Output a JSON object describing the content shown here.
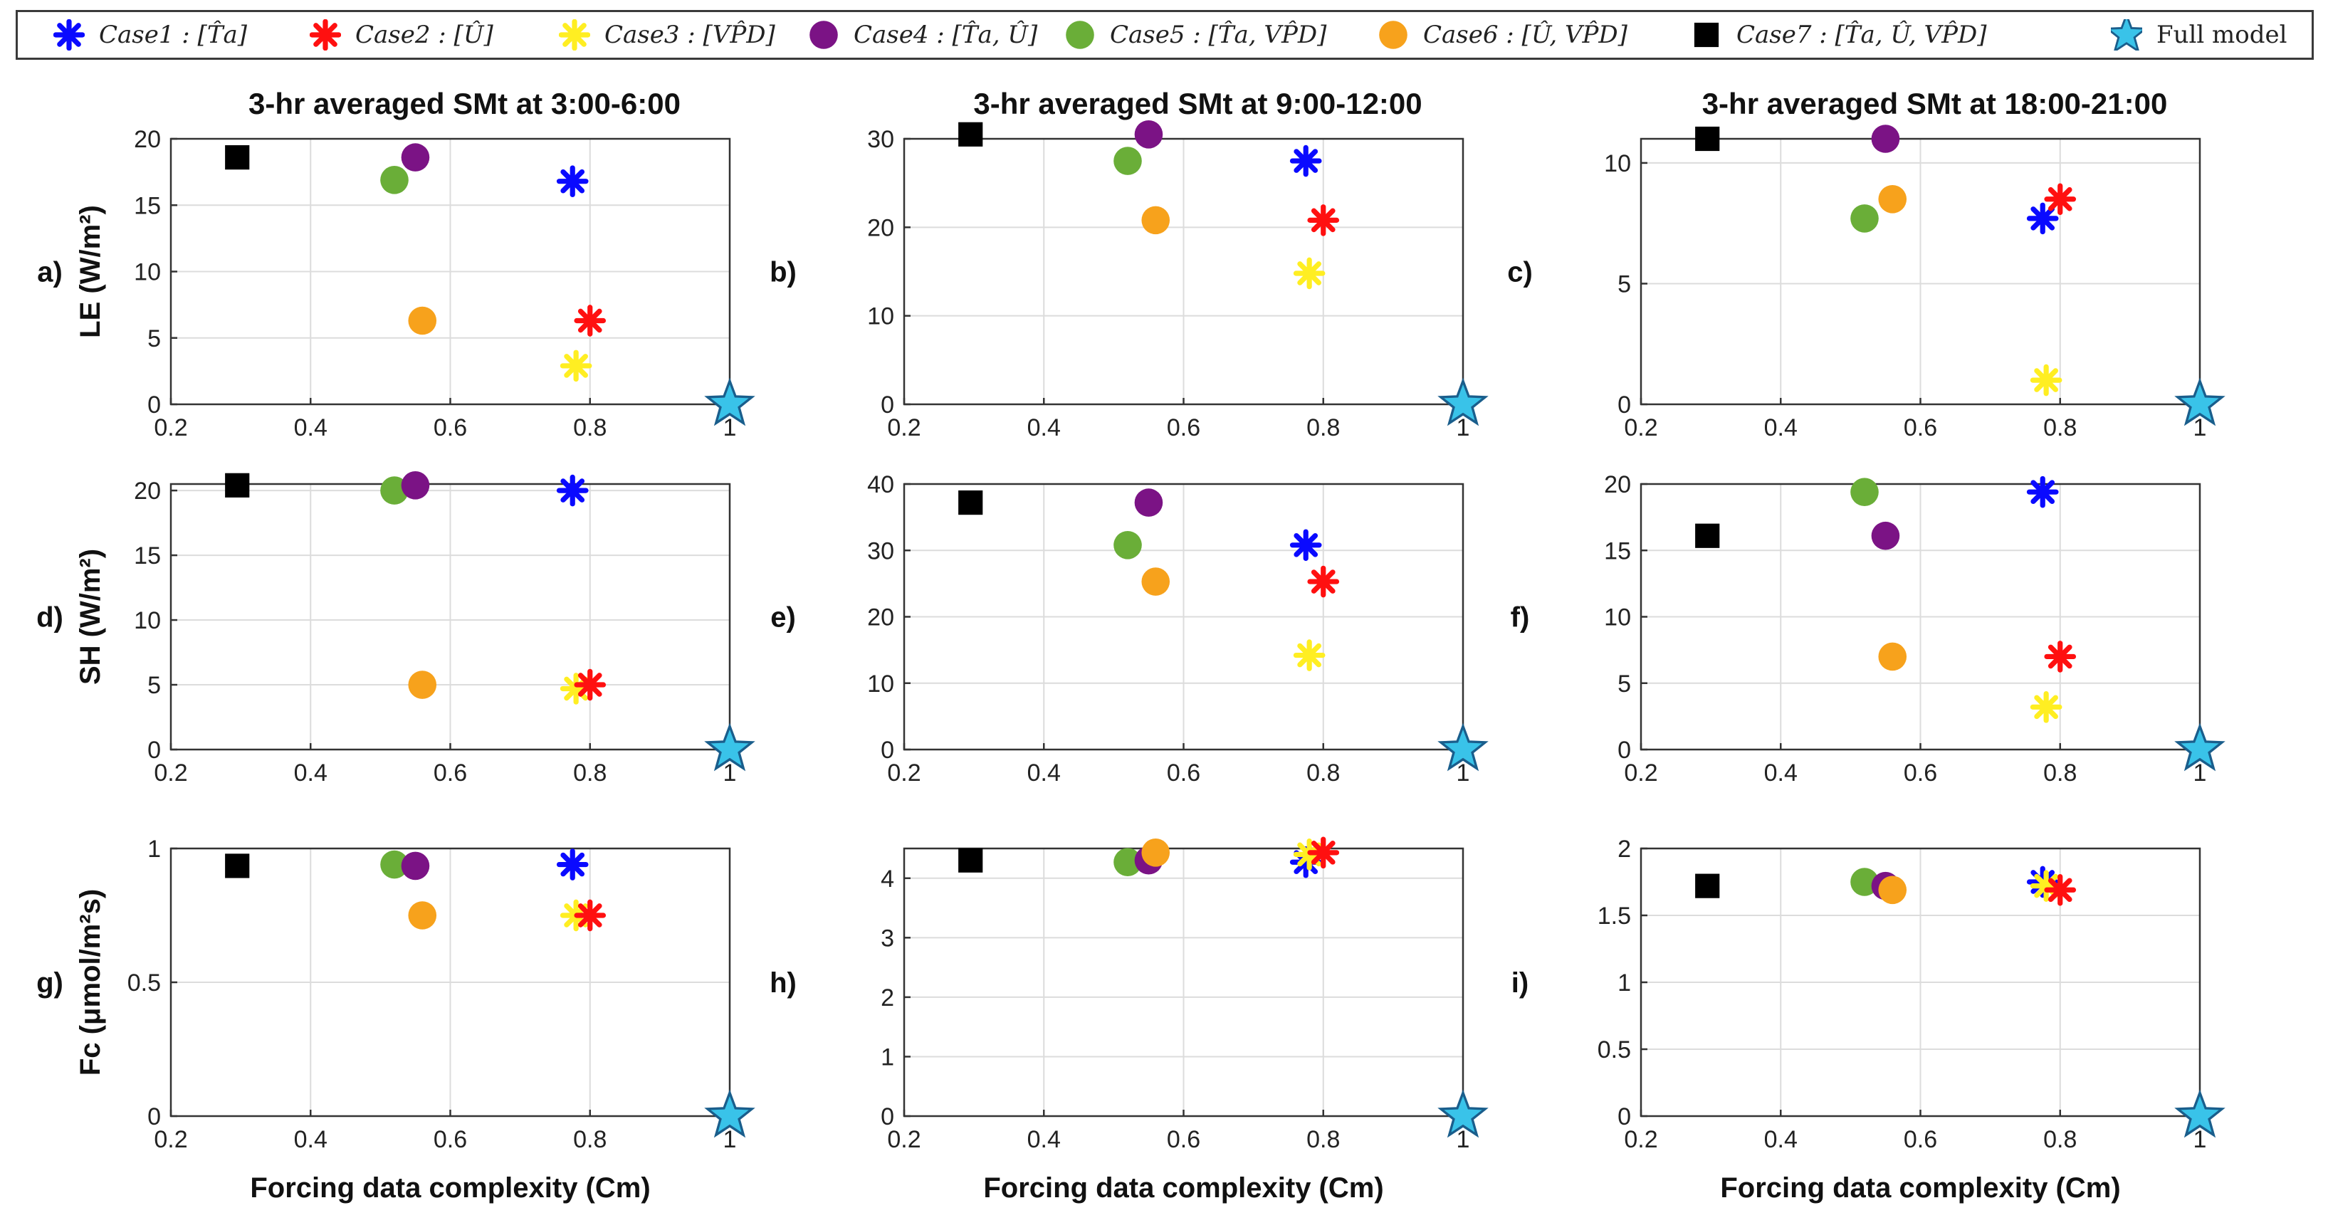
{
  "legend": [
    {
      "key": "case1",
      "label": "Case1 : [T̂a]",
      "marker": "asterisk",
      "color": "#0a0aff"
    },
    {
      "key": "case2",
      "label": "Case2 : [Û]",
      "marker": "asterisk",
      "color": "#ff1010"
    },
    {
      "key": "case3",
      "label": "Case3 : [VP̂D]",
      "marker": "asterisk",
      "color": "#ffee22"
    },
    {
      "key": "case4",
      "label": "Case4 : [T̂a, Û]",
      "marker": "circle",
      "color": "#7b1385"
    },
    {
      "key": "case5",
      "label": "Case5 : [T̂a, VP̂D]",
      "marker": "circle",
      "color": "#6aae38"
    },
    {
      "key": "case6",
      "label": "Case6 : [Û, VP̂D]",
      "marker": "circle",
      "color": "#f7a21c"
    },
    {
      "key": "case7",
      "label": "Case7 : [T̂a, Û, VP̂D]",
      "marker": "square",
      "color": "#000000"
    },
    {
      "key": "full",
      "label": "Full model",
      "marker": "star",
      "color": "#39c3e9"
    }
  ],
  "column_titles": [
    "3-hr averaged SMt at 3:00-6:00",
    "3-hr averaged SMt at 9:00-12:00",
    "3-hr averaged SMt at 18:00-21:00"
  ],
  "row_ylabels": [
    "LE (W/m²)",
    "SH (W/m²)",
    "Fc (μmol/m²s)"
  ],
  "xlabel": "Forcing data complexity (Cm)",
  "chart_data": [
    {
      "panel": "a)",
      "type": "scatter",
      "xlim": [
        0.2,
        1
      ],
      "ylim": [
        0,
        20
      ],
      "yticks": [
        "0",
        "5",
        "10",
        "15",
        "20"
      ],
      "xticks": [
        "0.2",
        "0.4",
        "0.6",
        "0.8",
        "1"
      ],
      "points": {
        "case1": [
          0.775,
          16.8
        ],
        "case2": [
          0.8,
          6.3
        ],
        "case3": [
          0.78,
          2.9
        ],
        "case4": [
          0.55,
          18.6
        ],
        "case5": [
          0.52,
          16.9
        ],
        "case6": [
          0.56,
          6.3
        ],
        "case7": [
          0.295,
          18.6
        ],
        "full": [
          1,
          0
        ]
      }
    },
    {
      "panel": "b)",
      "type": "scatter",
      "xlim": [
        0.2,
        1
      ],
      "ylim": [
        0,
        30
      ],
      "yticks": [
        "0",
        "10",
        "20",
        "30"
      ],
      "xticks": [
        "0.2",
        "0.4",
        "0.6",
        "0.8",
        "1"
      ],
      "points": {
        "case1": [
          0.775,
          27.5
        ],
        "case2": [
          0.8,
          20.8
        ],
        "case3": [
          0.78,
          14.8
        ],
        "case4": [
          0.55,
          30.5
        ],
        "case5": [
          0.52,
          27.5
        ],
        "case6": [
          0.56,
          20.8
        ],
        "case7": [
          0.295,
          30.5
        ],
        "full": [
          1,
          0
        ]
      }
    },
    {
      "panel": "c)",
      "type": "scatter",
      "xlim": [
        0.2,
        1
      ],
      "ylim": [
        0,
        11
      ],
      "yticks": [
        "0",
        "5",
        "10"
      ],
      "xticks": [
        "0.2",
        "0.4",
        "0.6",
        "0.8",
        "1"
      ],
      "points": {
        "case1": [
          0.775,
          7.7
        ],
        "case2": [
          0.8,
          8.5
        ],
        "case3": [
          0.78,
          1.0
        ],
        "case4": [
          0.55,
          11.0
        ],
        "case5": [
          0.52,
          7.7
        ],
        "case6": [
          0.56,
          8.5
        ],
        "case7": [
          0.295,
          11.0
        ],
        "full": [
          1,
          0
        ]
      }
    },
    {
      "panel": "d)",
      "type": "scatter",
      "xlim": [
        0.2,
        1
      ],
      "ylim": [
        0,
        20.5
      ],
      "yticks": [
        "0",
        "5",
        "10",
        "15",
        "20"
      ],
      "xticks": [
        "0.2",
        "0.4",
        "0.6",
        "0.8",
        "1"
      ],
      "points": {
        "case1": [
          0.775,
          20.0
        ],
        "case2": [
          0.8,
          5.0
        ],
        "case3": [
          0.78,
          4.7
        ],
        "case4": [
          0.55,
          20.4
        ],
        "case5": [
          0.52,
          20.0
        ],
        "case6": [
          0.56,
          5.0
        ],
        "case7": [
          0.295,
          20.4
        ],
        "full": [
          1,
          0
        ]
      }
    },
    {
      "panel": "e)",
      "type": "scatter",
      "xlim": [
        0.2,
        1
      ],
      "ylim": [
        0,
        40
      ],
      "yticks": [
        "0",
        "10",
        "20",
        "30",
        "40"
      ],
      "xticks": [
        "0.2",
        "0.4",
        "0.6",
        "0.8",
        "1"
      ],
      "points": {
        "case1": [
          0.775,
          30.8
        ],
        "case2": [
          0.8,
          25.3
        ],
        "case3": [
          0.78,
          14.2
        ],
        "case4": [
          0.55,
          37.2
        ],
        "case5": [
          0.52,
          30.8
        ],
        "case6": [
          0.56,
          25.3
        ],
        "case7": [
          0.295,
          37.2
        ],
        "full": [
          1,
          0
        ]
      }
    },
    {
      "panel": "f)",
      "type": "scatter",
      "xlim": [
        0.2,
        1
      ],
      "ylim": [
        0,
        20
      ],
      "yticks": [
        "0",
        "5",
        "10",
        "15",
        "20"
      ],
      "xticks": [
        "0.2",
        "0.4",
        "0.6",
        "0.8",
        "1"
      ],
      "points": {
        "case1": [
          0.775,
          19.4
        ],
        "case2": [
          0.8,
          7.0
        ],
        "case3": [
          0.78,
          3.2
        ],
        "case4": [
          0.55,
          16.1
        ],
        "case5": [
          0.52,
          19.4
        ],
        "case6": [
          0.56,
          7.0
        ],
        "case7": [
          0.295,
          16.1
        ],
        "full": [
          1,
          0
        ]
      }
    },
    {
      "panel": "g)",
      "type": "scatter",
      "xlim": [
        0.2,
        1
      ],
      "ylim": [
        0,
        1
      ],
      "yticks": [
        "0",
        "0.5",
        "1"
      ],
      "xticks": [
        "0.2",
        "0.4",
        "0.6",
        "0.8",
        "1"
      ],
      "points": {
        "case1": [
          0.775,
          0.94
        ],
        "case2": [
          0.8,
          0.75
        ],
        "case3": [
          0.78,
          0.75
        ],
        "case4": [
          0.55,
          0.935
        ],
        "case5": [
          0.52,
          0.94
        ],
        "case6": [
          0.56,
          0.75
        ],
        "case7": [
          0.295,
          0.935
        ],
        "full": [
          1,
          0
        ]
      }
    },
    {
      "panel": "h)",
      "type": "scatter",
      "xlim": [
        0.2,
        1
      ],
      "ylim": [
        0,
        4.5
      ],
      "yticks": [
        "0",
        "1",
        "2",
        "3",
        "4"
      ],
      "xticks": [
        "0.2",
        "0.4",
        "0.6",
        "0.8",
        "1"
      ],
      "points": {
        "case1": [
          0.775,
          4.27
        ],
        "case2": [
          0.8,
          4.43
        ],
        "case3": [
          0.78,
          4.4
        ],
        "case4": [
          0.55,
          4.3
        ],
        "case5": [
          0.52,
          4.27
        ],
        "case6": [
          0.56,
          4.43
        ],
        "case7": [
          0.295,
          4.3
        ],
        "full": [
          1,
          0
        ]
      }
    },
    {
      "panel": "i)",
      "type": "scatter",
      "xlim": [
        0.2,
        1
      ],
      "ylim": [
        0,
        2
      ],
      "yticks": [
        "0",
        "0.5",
        "1",
        "1.5",
        "2"
      ],
      "xticks": [
        "0.2",
        "0.4",
        "0.6",
        "0.8",
        "1"
      ],
      "points": {
        "case1": [
          0.775,
          1.75
        ],
        "case2": [
          0.8,
          1.69
        ],
        "case3": [
          0.78,
          1.72
        ],
        "case4": [
          0.55,
          1.72
        ],
        "case5": [
          0.52,
          1.75
        ],
        "case6": [
          0.56,
          1.69
        ],
        "case7": [
          0.295,
          1.72
        ],
        "full": [
          1,
          0
        ]
      }
    }
  ]
}
